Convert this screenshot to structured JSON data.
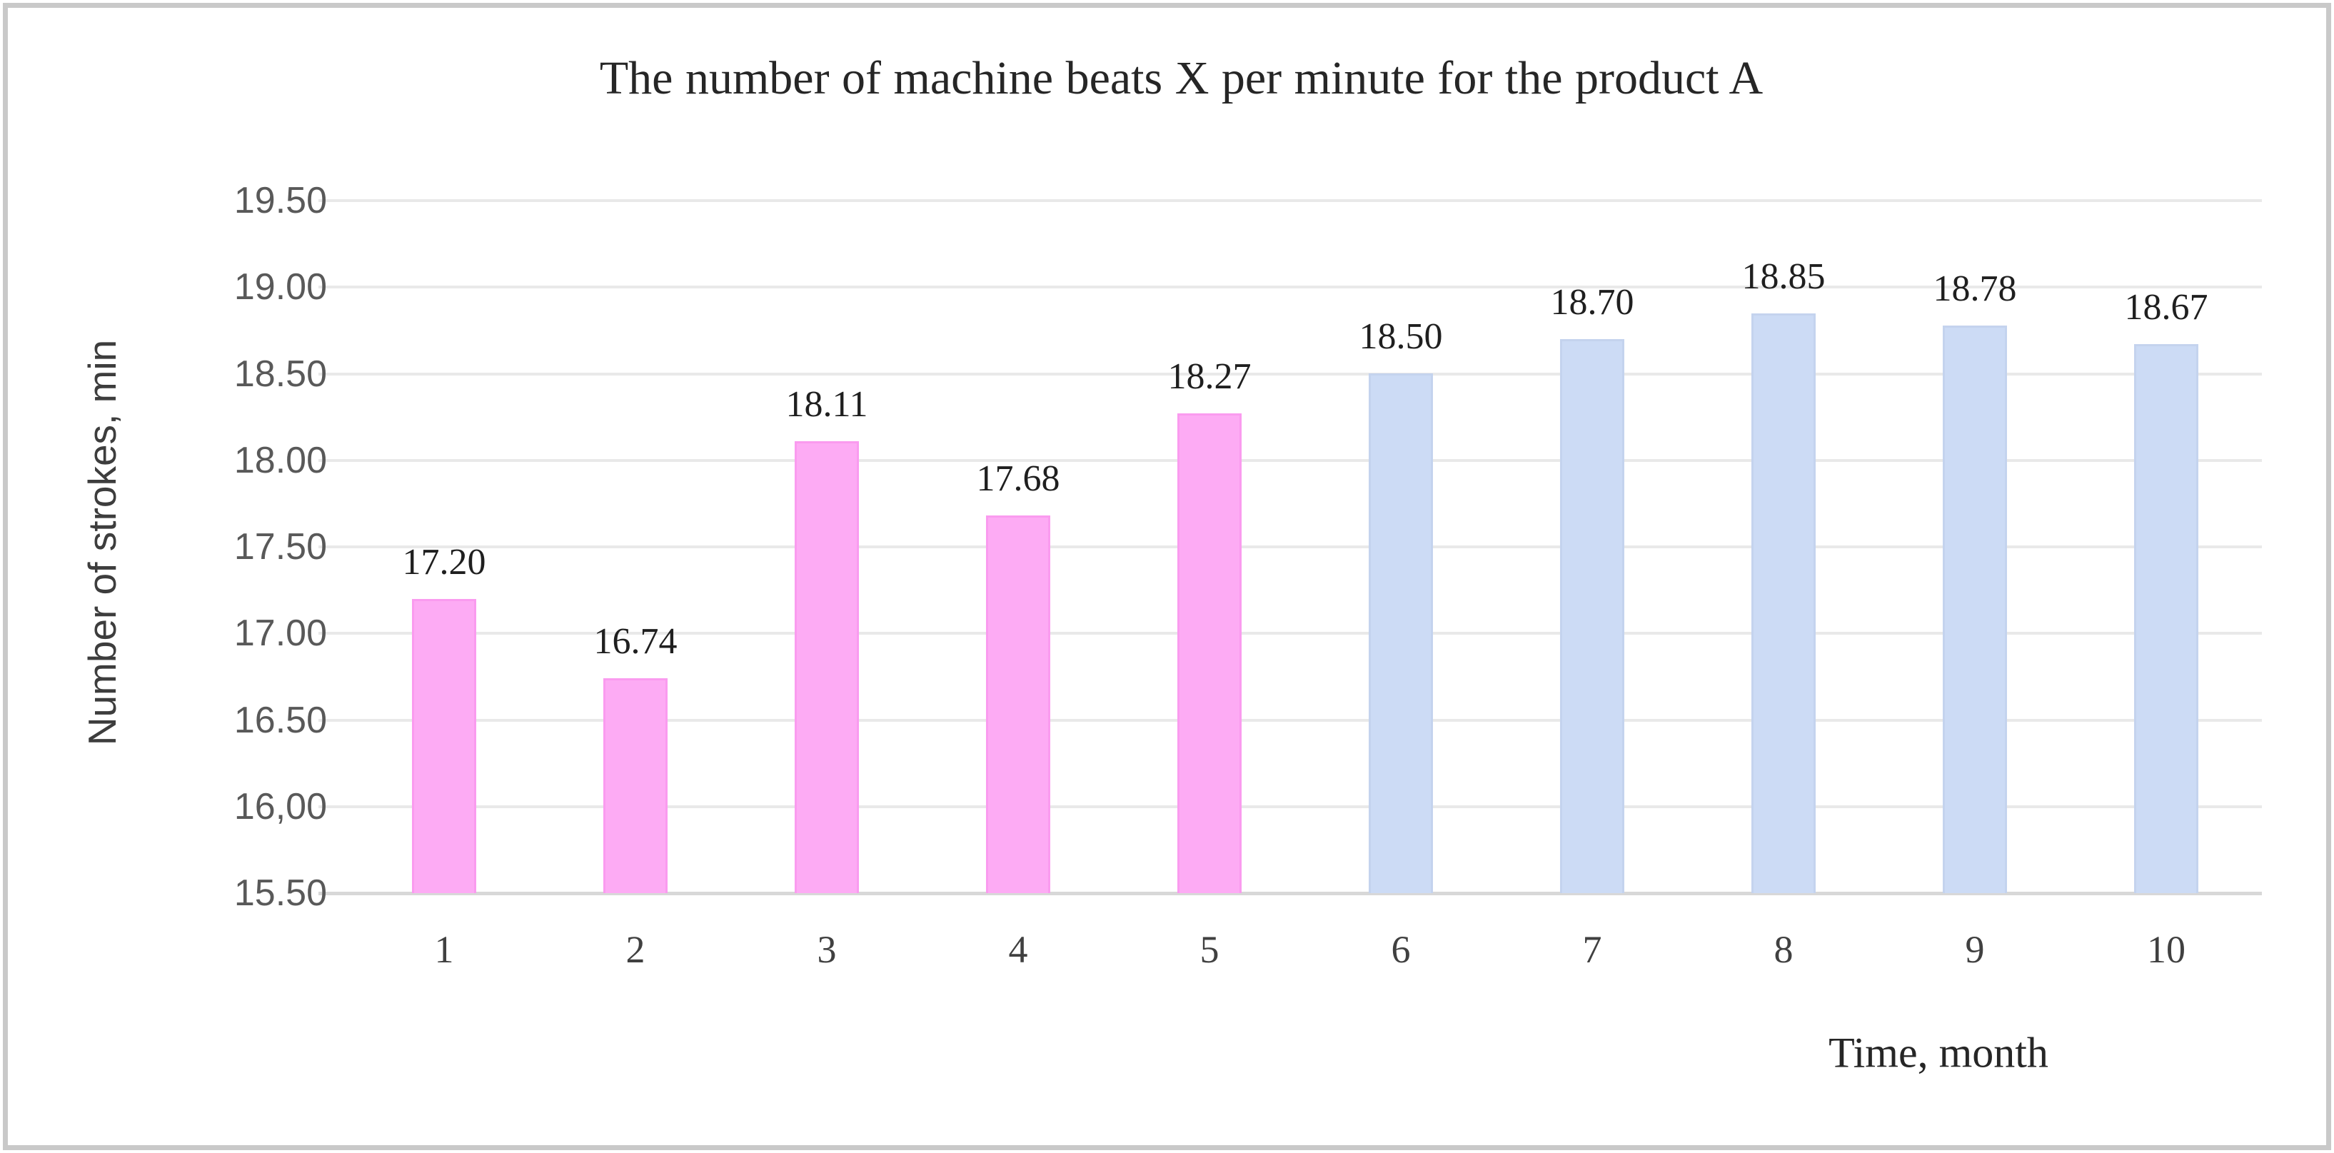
{
  "chart_data": {
    "type": "bar",
    "title": "The number of machine beats X per minute for the product A",
    "xlabel": "Time, month",
    "ylabel": "Number of strokes, min",
    "categories": [
      "1",
      "2",
      "3",
      "4",
      "5",
      "6",
      "7",
      "8",
      "9",
      "10"
    ],
    "values": [
      17.2,
      16.74,
      18.11,
      17.68,
      18.27,
      18.5,
      18.7,
      18.85,
      18.78,
      18.67
    ],
    "data_labels": [
      "17.20",
      "16.74",
      "18.11",
      "17.68",
      "18.27",
      "18.50",
      "18.70",
      "18.85",
      "18.78",
      "18.67"
    ],
    "bar_fill_colors": [
      "#fdabf4",
      "#fdabf4",
      "#fdabf4",
      "#fdabf4",
      "#fdabf4",
      "#ccdbf5",
      "#ccdbf5",
      "#ccdbf5",
      "#ccdbf5",
      "#ccdbf5"
    ],
    "bar_border_colors": [
      "#fa9bef",
      "#fa9bef",
      "#fa9bef",
      "#fa9bef",
      "#fa9bef",
      "#c4d3ee",
      "#c4d3ee",
      "#c4d3ee",
      "#c4d3ee",
      "#c4d3ee"
    ],
    "yticks": [
      {
        "value": 19.5,
        "label": "19.50"
      },
      {
        "value": 19.0,
        "label": "19.00"
      },
      {
        "value": 18.5,
        "label": "18.50"
      },
      {
        "value": 18.0,
        "label": "18.00"
      },
      {
        "value": 17.5,
        "label": "17.50"
      },
      {
        "value": 17.0,
        "label": "17.00"
      },
      {
        "value": 16.5,
        "label": "16.50"
      },
      {
        "value": 16.0,
        "label": "16,00"
      },
      {
        "value": 15.5,
        "label": "15.50"
      }
    ],
    "ylim": [
      15.5,
      19.5
    ],
    "grid": true,
    "legend": false,
    "colors": {
      "gridline": "#e9e9e9",
      "baseline": "#d8d8d8",
      "frame_border": "#c9c9c9",
      "title_text": "#262626",
      "tick_text": "#595959"
    }
  }
}
